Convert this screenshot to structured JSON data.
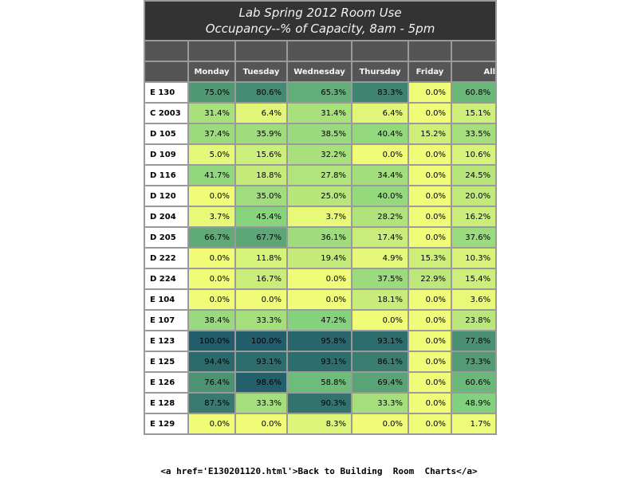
{
  "title_line1": "Lab Spring 2012 Room Use",
  "title_line2": "Occupancy--% of Capacity, 8am - 5pm",
  "footer_link_text": "<a href='E130201120.html'>Back to Building  Room  Charts</a>",
  "chart_data": {
    "type": "heatmap",
    "title": "Lab Spring 2012 Room Use",
    "subtitle": "Occupancy--% of Capacity, 8am - 5pm",
    "columns": [
      "Monday",
      "Tuesday",
      "Wednesday",
      "Thursday",
      "Friday",
      "All"
    ],
    "rows": [
      {
        "room": "E 130",
        "values": [
          "75.0%",
          "80.6%",
          "65.3%",
          "83.3%",
          "0.0%",
          "60.8%"
        ]
      },
      {
        "room": "C 2003",
        "values": [
          "31.4%",
          "6.4%",
          "31.4%",
          "6.4%",
          "0.0%",
          "15.1%"
        ]
      },
      {
        "room": "D 105",
        "values": [
          "37.4%",
          "35.9%",
          "38.5%",
          "40.4%",
          "15.2%",
          "33.5%"
        ]
      },
      {
        "room": "D 109",
        "values": [
          "5.0%",
          "15.6%",
          "32.2%",
          "0.0%",
          "0.0%",
          "10.6%"
        ]
      },
      {
        "room": "D 116",
        "values": [
          "41.7%",
          "18.8%",
          "27.8%",
          "34.4%",
          "0.0%",
          "24.5%"
        ]
      },
      {
        "room": "D 120",
        "values": [
          "0.0%",
          "35.0%",
          "25.0%",
          "40.0%",
          "0.0%",
          "20.0%"
        ]
      },
      {
        "room": "D 204",
        "values": [
          "3.7%",
          "45.4%",
          "3.7%",
          "28.2%",
          "0.0%",
          "16.2%"
        ]
      },
      {
        "room": "D 205",
        "values": [
          "66.7%",
          "67.7%",
          "36.1%",
          "17.4%",
          "0.0%",
          "37.6%"
        ]
      },
      {
        "room": "D 222",
        "values": [
          "0.0%",
          "11.8%",
          "19.4%",
          "4.9%",
          "15.3%",
          "10.3%"
        ]
      },
      {
        "room": "D 224",
        "values": [
          "0.0%",
          "16.7%",
          "0.0%",
          "37.5%",
          "22.9%",
          "15.4%"
        ]
      },
      {
        "room": "E 104",
        "values": [
          "0.0%",
          "0.0%",
          "0.0%",
          "18.1%",
          "0.0%",
          "3.6%"
        ]
      },
      {
        "room": "E 107",
        "values": [
          "38.4%",
          "33.3%",
          "47.2%",
          "0.0%",
          "0.0%",
          "23.8%"
        ]
      },
      {
        "room": "E 123",
        "values": [
          "100.0%",
          "100.0%",
          "95.8%",
          "93.1%",
          "0.0%",
          "77.8%"
        ]
      },
      {
        "room": "E 125",
        "values": [
          "94.4%",
          "93.1%",
          "93.1%",
          "86.1%",
          "0.0%",
          "73.3%"
        ]
      },
      {
        "room": "E 126",
        "values": [
          "76.4%",
          "98.6%",
          "58.8%",
          "69.4%",
          "0.0%",
          "60.6%"
        ]
      },
      {
        "room": "E 128",
        "values": [
          "87.5%",
          "33.3%",
          "90.3%",
          "33.3%",
          "0.0%",
          "48.9%"
        ]
      },
      {
        "room": "E 129",
        "values": [
          "0.0%",
          "0.0%",
          "8.3%",
          "0.0%",
          "0.0%",
          "1.7%"
        ]
      }
    ],
    "color_scale": {
      "low": "#f0fc78",
      "mid": "#7ed07e",
      "high": "#215d6a"
    }
  }
}
